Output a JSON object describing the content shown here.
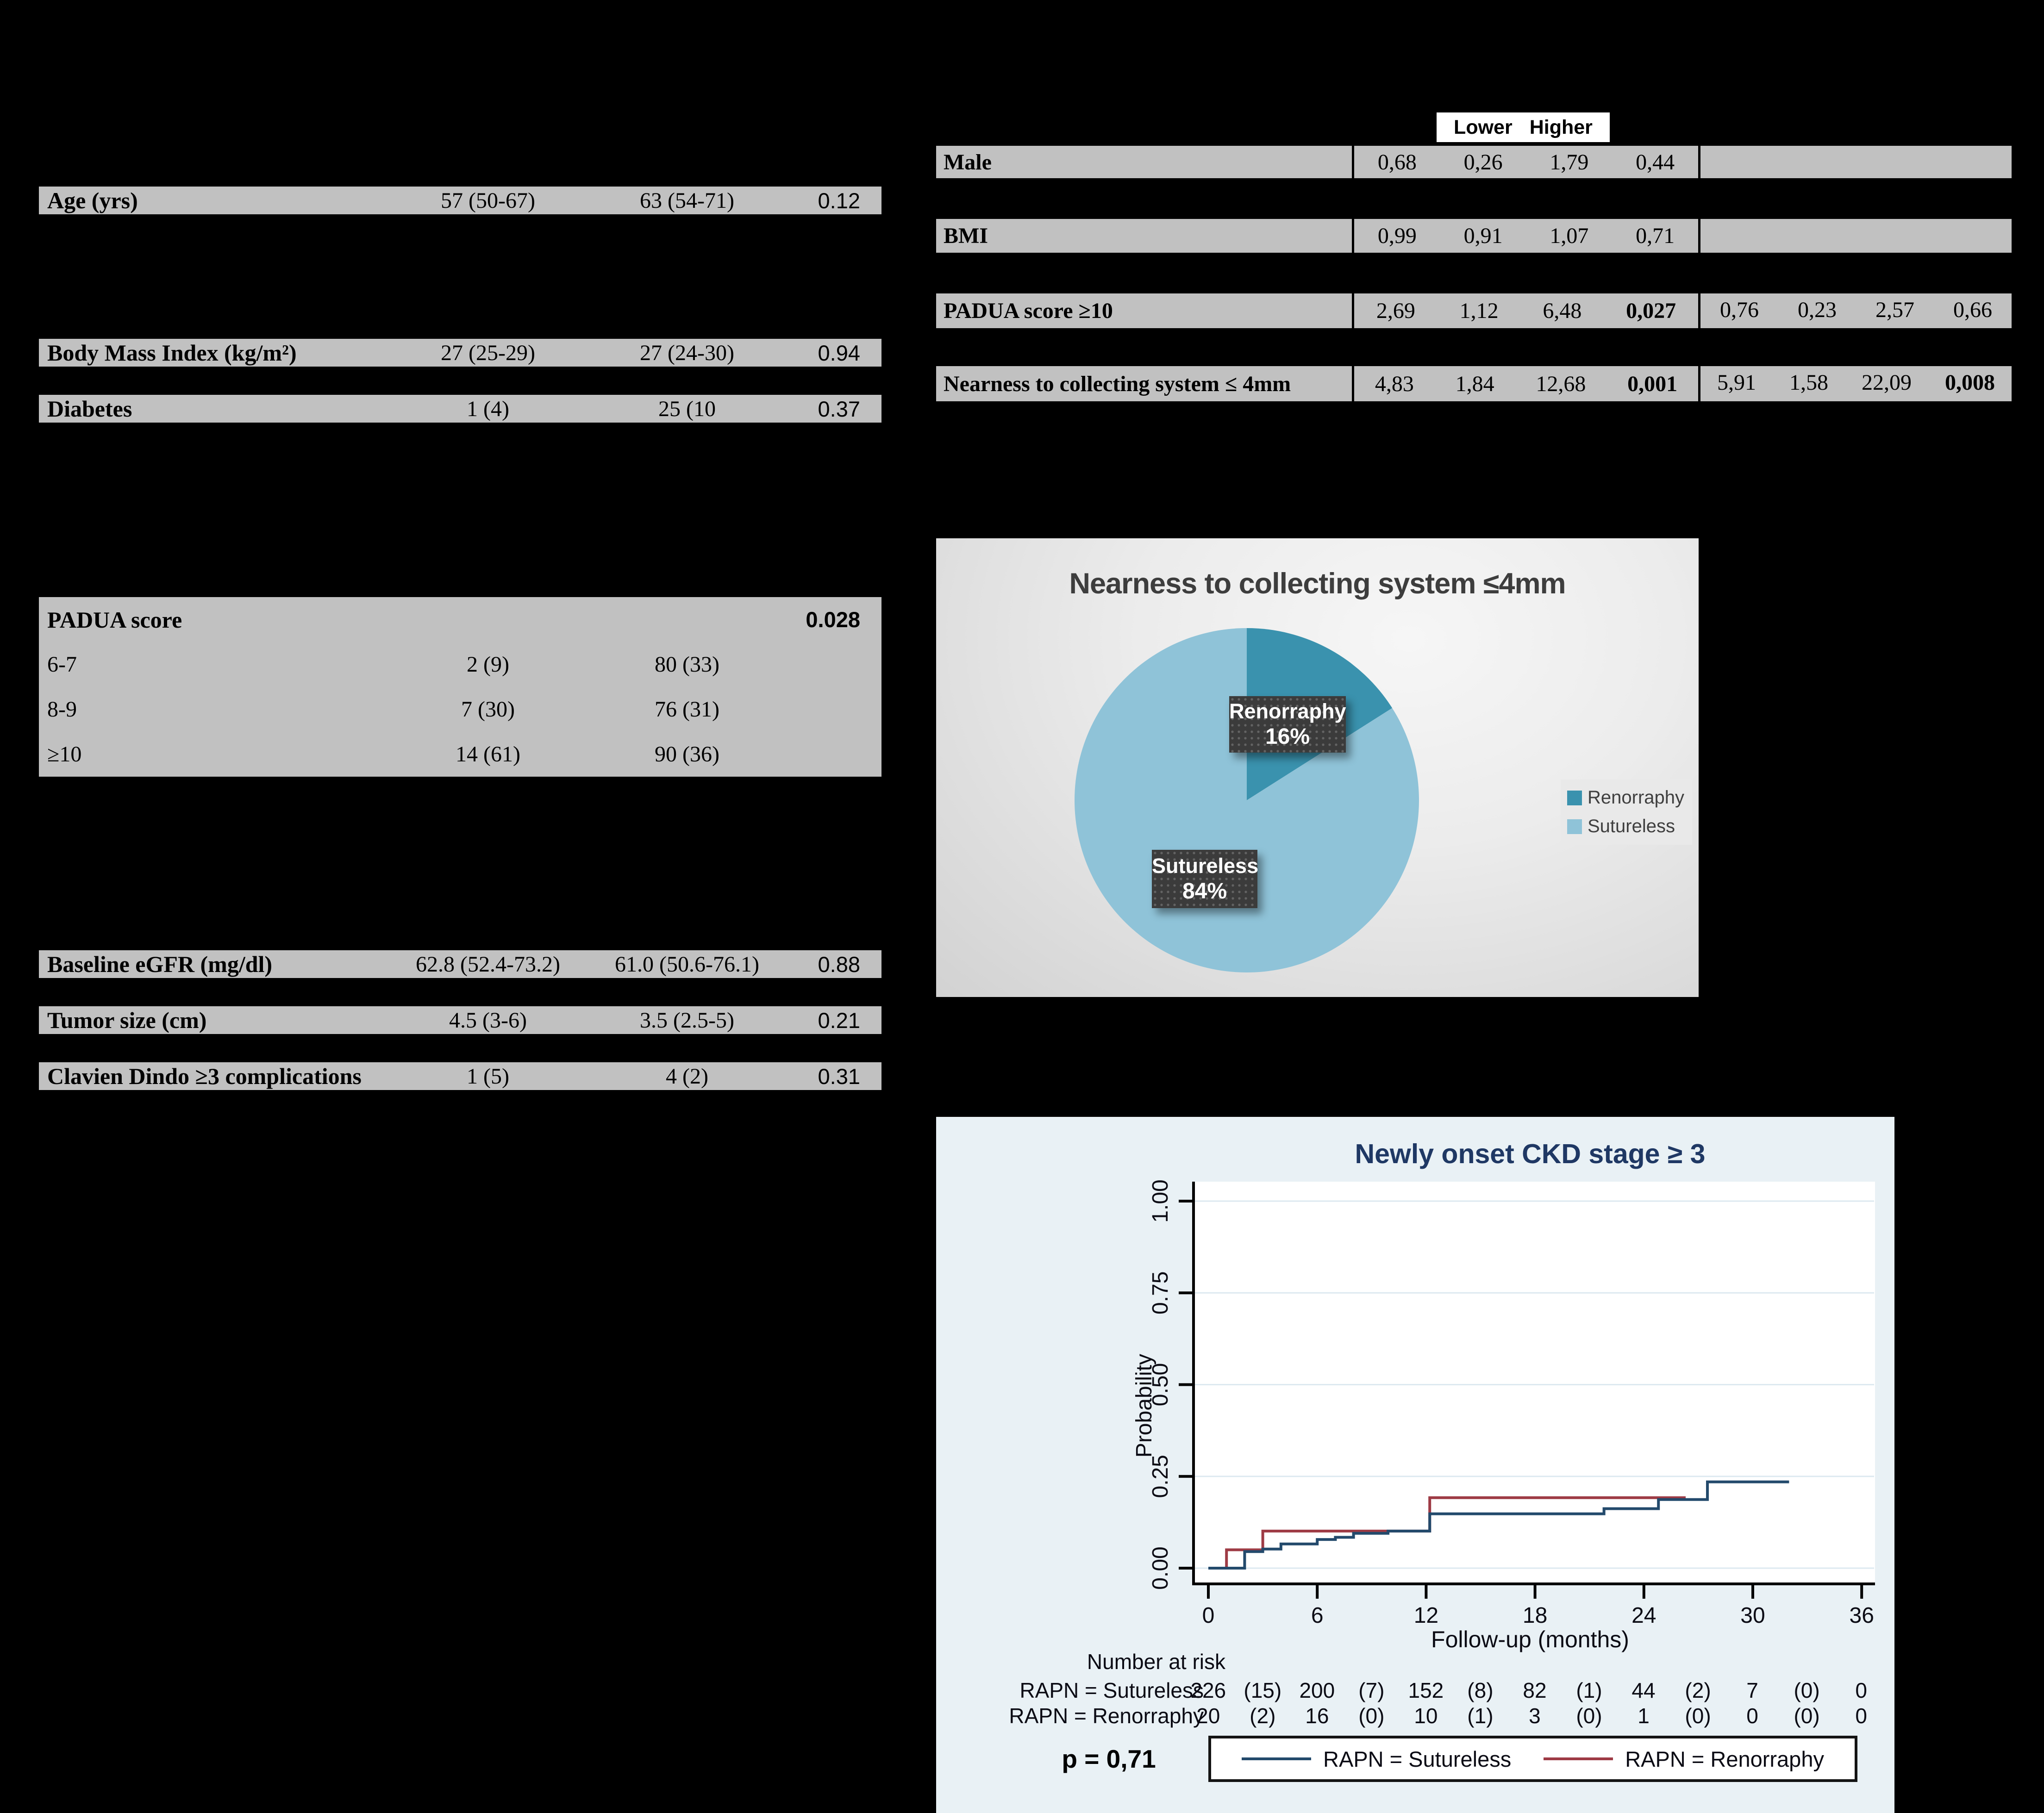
{
  "baseline_table": {
    "rows_top": [
      {
        "label": "Age (yrs)",
        "c1": "57 (50-67)",
        "c2": "63 (54-71)",
        "p": "0.12"
      },
      {
        "label": "Body Mass Index (kg/m²)",
        "c1": "27 (25-29)",
        "c2": "27 (24-30)",
        "p": "0.94"
      },
      {
        "label": "Diabetes",
        "c1": "1 (4)",
        "c2": "25 (10",
        "p": "0.37"
      }
    ],
    "padua": {
      "label": "PADUA score",
      "p": "0.028",
      "rows": [
        {
          "label": "6-7",
          "c1": "2 (9)",
          "c2": "80 (33)"
        },
        {
          "label": "8-9",
          "c1": "7 (30)",
          "c2": "76 (31)"
        },
        {
          "label": "≥10",
          "c1": "14 (61)",
          "c2": "90 (36)"
        }
      ]
    },
    "rows_bottom": [
      {
        "label": "Baseline eGFR (mg/dl)",
        "c1": "62.8 (52.4-73.2)",
        "c2": "61.0 (50.6-76.1)",
        "p": "0.88"
      },
      {
        "label": "Tumor size (cm)",
        "c1": "4.5 (3-6)",
        "c2": "3.5 (2.5-5)",
        "p": "0.21"
      },
      {
        "label": "Clavien Dindo ≥3 complications",
        "c1": "1 (5)",
        "c2": "4 (2)",
        "p": "0.31"
      }
    ]
  },
  "or_table": {
    "col_lower": "Lower",
    "col_higher": "Higher",
    "rows": [
      {
        "label": "Male",
        "u": [
          "0,68",
          "0,26",
          "1,79",
          "0,44"
        ],
        "m": [
          "",
          "",
          "",
          ""
        ]
      },
      {
        "label": "BMI",
        "u": [
          "0,99",
          "0,91",
          "1,07",
          "0,71"
        ],
        "m": [
          "",
          "",
          "",
          ""
        ]
      },
      {
        "label": "PADUA score ≥10",
        "u": [
          "2,69",
          "1,12",
          "6,48",
          "0,027"
        ],
        "m": [
          "0,76",
          "0,23",
          "2,57",
          "0,66"
        ]
      },
      {
        "label": "Nearness to collecting system ≤ 4mm",
        "u": [
          "4,83",
          "1,84",
          "12,68",
          "0,001"
        ],
        "m": [
          "5,91",
          "1,58",
          "22,09",
          "0,008"
        ]
      }
    ]
  },
  "pie_labels": [
    {
      "line1": "Renorraphy",
      "line2": "16%"
    },
    {
      "line1": "Sutureless",
      "line2": "84%"
    }
  ],
  "chart_data": [
    {
      "type": "pie",
      "title": "Nearness to collecting system ≤4mm",
      "labels": [
        "Renorraphy",
        "Sutureless"
      ],
      "values": [
        16,
        84
      ],
      "unit": "%",
      "colors": [
        "#3a92ae",
        "#8fc3d8"
      ],
      "legend_position": "right",
      "start_angle_deg": -90,
      "direction": "clockwise"
    },
    {
      "type": "line",
      "title": "Newly onset CKD stage ≥ 3",
      "xlabel": "Follow-up (months)",
      "ylabel": "Probability",
      "xlim": [
        0,
        36
      ],
      "ylim": [
        0,
        1
      ],
      "xticks": [
        0,
        6,
        12,
        18,
        24,
        30,
        36
      ],
      "ytick_labels": [
        "0.00",
        "0.25",
        "0.50",
        "0.75",
        "1.00"
      ],
      "grid": true,
      "p_value": "p = 0,71",
      "series": [
        {
          "name": "RAPN = Renorraphy",
          "color": "#9e3b45",
          "steps": [
            [
              0,
              0
            ],
            [
              1,
              0
            ],
            [
              1,
              0.05
            ],
            [
              3,
              0.05
            ],
            [
              3,
              0.101
            ],
            [
              12.2,
              0.101
            ],
            [
              12.2,
              0.192
            ],
            [
              26.3,
              0.192
            ]
          ]
        },
        {
          "name": "RAPN = Sutureless",
          "color": "#234a6c",
          "steps": [
            [
              0,
              0
            ],
            [
              2,
              0
            ],
            [
              2,
              0.045
            ],
            [
              3,
              0.045
            ],
            [
              3,
              0.052
            ],
            [
              4,
              0.052
            ],
            [
              4,
              0.066
            ],
            [
              6,
              0.066
            ],
            [
              6,
              0.078
            ],
            [
              7,
              0.078
            ],
            [
              7,
              0.084
            ],
            [
              8,
              0.084
            ],
            [
              8,
              0.095
            ],
            [
              9.9,
              0.095
            ],
            [
              9.9,
              0.101
            ],
            [
              12.2,
              0.101
            ],
            [
              12.2,
              0.148
            ],
            [
              21.8,
              0.148
            ],
            [
              21.8,
              0.162
            ],
            [
              24.8,
              0.162
            ],
            [
              24.8,
              0.187
            ],
            [
              27.5,
              0.187
            ],
            [
              27.5,
              0.235
            ],
            [
              32,
              0.235
            ]
          ]
        }
      ],
      "number_at_risk": {
        "title": "Number at risk",
        "rows": [
          {
            "label": "RAPN = Sutureless",
            "values": [
              "226",
              "(15)",
              "200",
              "(7)",
              "152",
              "(8)",
              "82",
              "(1)",
              "44",
              "(2)",
              "7",
              "(0)",
              "0"
            ]
          },
          {
            "label": "RAPN = Renorraphy",
            "values": [
              "20",
              "(2)",
              "16",
              "(0)",
              "10",
              "(1)",
              "3",
              "(0)",
              "1",
              "(0)",
              "0",
              "(0)",
              "0"
            ]
          }
        ]
      }
    }
  ]
}
